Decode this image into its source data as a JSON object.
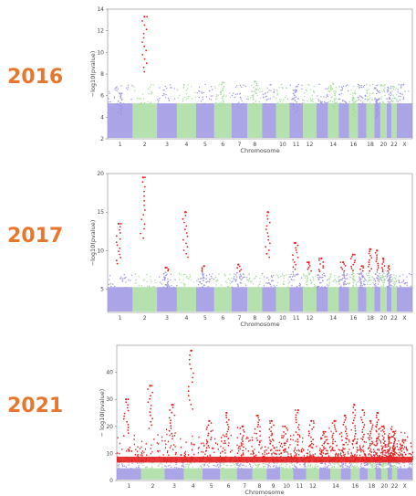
{
  "colors": {
    "year": "#e8772e",
    "odd": "#9c95e3",
    "even": "#a8dca0",
    "hit": "#e02020"
  },
  "chart_data": [
    {
      "type": "scatter",
      "title": "2016",
      "xlabel": "Chromosome",
      "ylabel": "−log10(pvalue)",
      "ylim": [
        2,
        14
      ],
      "yticks": [
        2,
        4,
        6,
        8,
        10,
        12,
        14
      ],
      "chromosomes": [
        "1",
        "2",
        "3",
        "4",
        "5",
        "6",
        "7",
        "8",
        "9",
        "10",
        "11",
        "12",
        "13",
        "14",
        "15",
        "16",
        "17",
        "18",
        "19",
        "20",
        "21",
        "22",
        "X"
      ],
      "xticklabels": [
        "1",
        "2",
        "3",
        "4",
        "5",
        "6",
        "7",
        "8",
        "10",
        "11",
        "12",
        "14",
        "16",
        "18",
        "20",
        "22",
        "X"
      ],
      "threshold": 7.3,
      "peaks": [
        {
          "chromosome": "2",
          "value": 13.3,
          "significant": true
        },
        {
          "chromosome": "1",
          "value": 6.2,
          "significant": false
        },
        {
          "chromosome": "6",
          "value": 7.2,
          "significant": false
        },
        {
          "chromosome": "8",
          "value": 7.3,
          "significant": false
        },
        {
          "chromosome": "11",
          "value": 6.5,
          "significant": false
        },
        {
          "chromosome": "14",
          "value": 7.1,
          "significant": false
        },
        {
          "chromosome": "16",
          "value": 5.8,
          "significant": false
        },
        {
          "chromosome": "19",
          "value": 5.6,
          "significant": false
        }
      ]
    },
    {
      "type": "scatter",
      "title": "2017",
      "xlabel": "Chromosome",
      "ylabel": "−log10(pvalue)",
      "ylim": [
        2,
        20
      ],
      "yticks": [
        5,
        10,
        15,
        20
      ],
      "chromosomes": [
        "1",
        "2",
        "3",
        "4",
        "5",
        "6",
        "7",
        "8",
        "9",
        "10",
        "11",
        "12",
        "13",
        "14",
        "15",
        "16",
        "17",
        "18",
        "19",
        "20",
        "21",
        "22",
        "X"
      ],
      "xticklabels": [
        "1",
        "2",
        "3",
        "4",
        "5",
        "6",
        "7",
        "8",
        "9",
        "10",
        "11",
        "12",
        "14",
        "16",
        "18",
        "20",
        "22",
        "X"
      ],
      "threshold": 7.3,
      "peaks": [
        {
          "chromosome": "1",
          "value": 13.5,
          "significant": true
        },
        {
          "chromosome": "2",
          "value": 19.5,
          "significant": true
        },
        {
          "chromosome": "3",
          "value": 7.8,
          "significant": true
        },
        {
          "chromosome": "4",
          "value": 15.0,
          "significant": true
        },
        {
          "chromosome": "5",
          "value": 8.0,
          "significant": true
        },
        {
          "chromosome": "7",
          "value": 8.2,
          "significant": true
        },
        {
          "chromosome": "9",
          "value": 15.0,
          "significant": true
        },
        {
          "chromosome": "11",
          "value": 11.0,
          "significant": true
        },
        {
          "chromosome": "12",
          "value": 8.5,
          "significant": true
        },
        {
          "chromosome": "13",
          "value": 9.0,
          "significant": true
        },
        {
          "chromosome": "15",
          "value": 8.5,
          "significant": true
        },
        {
          "chromosome": "16",
          "value": 9.5,
          "significant": true
        },
        {
          "chromosome": "17",
          "value": 8.0,
          "significant": true
        },
        {
          "chromosome": "18",
          "value": 10.2,
          "significant": true
        },
        {
          "chromosome": "19",
          "value": 10.0,
          "significant": true
        },
        {
          "chromosome": "20",
          "value": 9.0,
          "significant": true
        },
        {
          "chromosome": "21",
          "value": 8.0,
          "significant": true
        }
      ]
    },
    {
      "type": "scatter",
      "title": "2021",
      "xlabel": "Chromosome",
      "ylabel": "− log10(pvalue)",
      "ylim": [
        0,
        50
      ],
      "yticks": [
        0,
        10,
        20,
        30,
        40
      ],
      "chromosomes": [
        "1",
        "2",
        "3",
        "4",
        "5",
        "6",
        "7",
        "8",
        "9",
        "10",
        "11",
        "12",
        "13",
        "14",
        "15",
        "16",
        "17",
        "18",
        "19",
        "20",
        "21",
        "22",
        "X"
      ],
      "xticklabels": [
        "1",
        "2",
        "3",
        "4",
        "5",
        "6",
        "7",
        "8",
        "9",
        "10",
        "11",
        "12",
        "14",
        "16",
        "18",
        "20",
        "22",
        "X"
      ],
      "threshold": 7.3,
      "peaks": [
        {
          "chromosome": "1",
          "value": 30,
          "significant": true
        },
        {
          "chromosome": "2",
          "value": 35,
          "significant": true
        },
        {
          "chromosome": "3",
          "value": 28,
          "significant": true
        },
        {
          "chromosome": "4",
          "value": 48,
          "significant": true
        },
        {
          "chromosome": "5",
          "value": 22,
          "significant": true
        },
        {
          "chromosome": "6",
          "value": 25,
          "significant": true
        },
        {
          "chromosome": "7",
          "value": 20,
          "significant": true
        },
        {
          "chromosome": "8",
          "value": 24,
          "significant": true
        },
        {
          "chromosome": "9",
          "value": 22,
          "significant": true
        },
        {
          "chromosome": "10",
          "value": 20,
          "significant": true
        },
        {
          "chromosome": "11",
          "value": 26,
          "significant": true
        },
        {
          "chromosome": "12",
          "value": 22,
          "significant": true
        },
        {
          "chromosome": "13",
          "value": 18,
          "significant": true
        },
        {
          "chromosome": "14",
          "value": 22,
          "significant": true
        },
        {
          "chromosome": "15",
          "value": 24,
          "significant": true
        },
        {
          "chromosome": "16",
          "value": 28,
          "significant": true
        },
        {
          "chromosome": "17",
          "value": 26,
          "significant": true
        },
        {
          "chromosome": "18",
          "value": 22,
          "significant": true
        },
        {
          "chromosome": "19",
          "value": 25,
          "significant": true
        },
        {
          "chromosome": "20",
          "value": 20,
          "significant": true
        },
        {
          "chromosome": "21",
          "value": 16,
          "significant": true
        },
        {
          "chromosome": "22",
          "value": 18,
          "significant": true
        },
        {
          "chromosome": "X",
          "value": 15,
          "significant": true
        }
      ]
    }
  ]
}
